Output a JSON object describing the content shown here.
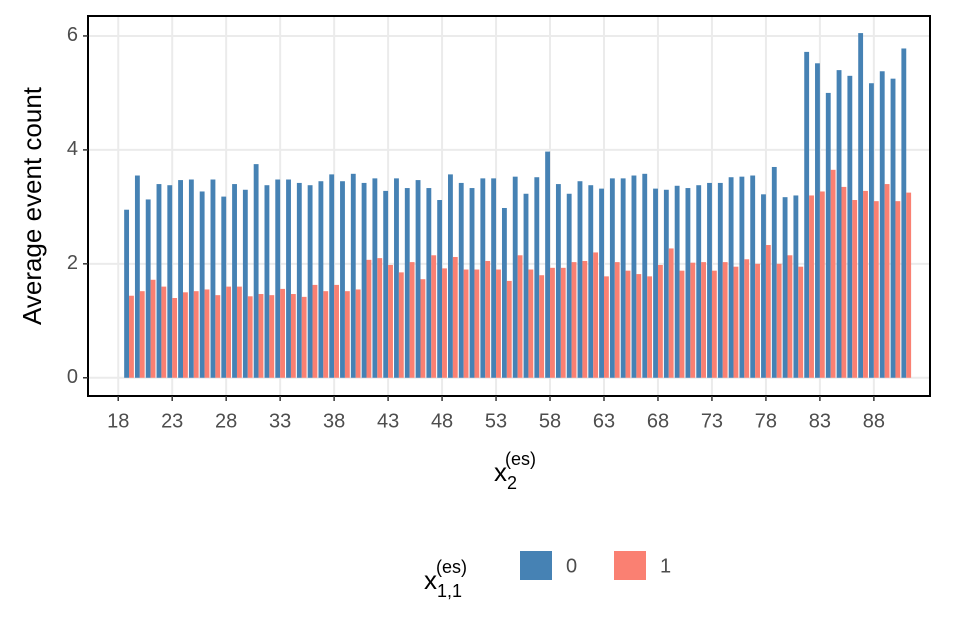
{
  "chart_data": {
    "type": "grouped_bar",
    "x_label": {
      "base": "x",
      "sub": "2",
      "sup": "(es)"
    },
    "y_label": "Average event count",
    "legend_title": {
      "base": "x",
      "sub": "1,1",
      "sup": "(es)"
    },
    "legend_position": "bottom",
    "grid": true,
    "x": [
      19,
      20,
      21,
      22,
      23,
      24,
      25,
      26,
      27,
      28,
      29,
      30,
      31,
      32,
      33,
      34,
      35,
      36,
      37,
      38,
      39,
      40,
      41,
      42,
      43,
      44,
      45,
      46,
      47,
      48,
      49,
      50,
      51,
      52,
      53,
      54,
      55,
      56,
      57,
      58,
      59,
      60,
      61,
      62,
      63,
      64,
      65,
      66,
      67,
      68,
      69,
      70,
      71,
      72,
      73,
      74,
      75,
      76,
      77,
      78,
      79,
      80,
      81,
      82,
      83,
      84,
      85,
      86,
      87,
      88,
      89,
      90,
      91
    ],
    "series": [
      {
        "name": "0",
        "color": "#4682b4",
        "values": [
          2.95,
          3.55,
          3.13,
          3.4,
          3.38,
          3.47,
          3.48,
          3.27,
          3.48,
          3.18,
          3.4,
          3.3,
          3.75,
          3.38,
          3.48,
          3.48,
          3.42,
          3.38,
          3.45,
          3.57,
          3.45,
          3.58,
          3.42,
          3.5,
          3.28,
          3.5,
          3.33,
          3.47,
          3.33,
          3.12,
          3.57,
          3.42,
          3.33,
          3.5,
          3.5,
          2.98,
          3.53,
          3.23,
          3.52,
          3.97,
          3.4,
          3.23,
          3.45,
          3.38,
          3.32,
          3.5,
          3.5,
          3.55,
          3.58,
          3.32,
          3.3,
          3.37,
          3.33,
          3.38,
          3.42,
          3.42,
          3.52,
          3.53,
          3.55,
          3.22,
          3.7,
          3.17,
          3.2,
          5.72,
          5.52,
          5.0,
          5.4,
          5.3,
          6.05,
          5.17,
          5.38,
          5.25,
          5.78
        ]
      },
      {
        "name": "1",
        "color": "#fa8072",
        "values": [
          1.44,
          1.52,
          1.72,
          1.6,
          1.4,
          1.5,
          1.52,
          1.55,
          1.45,
          1.6,
          1.6,
          1.43,
          1.47,
          1.45,
          1.56,
          1.47,
          1.42,
          1.63,
          1.52,
          1.63,
          1.52,
          1.55,
          2.07,
          2.1,
          1.98,
          1.85,
          2.03,
          1.73,
          2.15,
          1.92,
          2.12,
          1.9,
          1.9,
          2.05,
          1.9,
          1.7,
          2.15,
          1.9,
          1.8,
          1.93,
          1.93,
          2.03,
          2.05,
          2.2,
          1.78,
          2.03,
          1.88,
          1.82,
          1.78,
          1.98,
          2.27,
          1.88,
          2.02,
          2.03,
          1.88,
          2.03,
          1.95,
          2.08,
          2.0,
          2.33,
          2.0,
          2.15,
          1.95,
          3.2,
          3.27,
          3.65,
          3.35,
          3.12,
          3.28,
          3.1,
          3.4,
          3.1,
          3.25
        ]
      }
    ],
    "xlim": [
      15.2,
      93.2
    ],
    "xticks": [
      18,
      23,
      28,
      33,
      38,
      43,
      48,
      53,
      58,
      63,
      68,
      73,
      78,
      83,
      88
    ],
    "ylim": [
      -0.32,
      6.35
    ],
    "yticks": [
      0,
      2,
      4,
      6
    ]
  }
}
